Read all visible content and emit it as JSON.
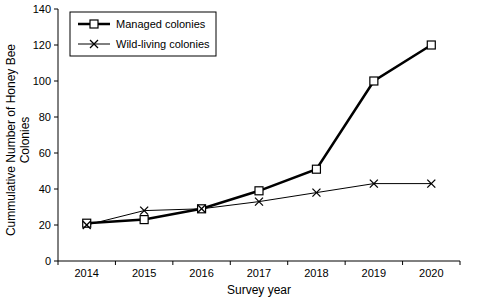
{
  "chart_data": {
    "type": "line",
    "x_label": "Survey year",
    "y_label": "Cummulative Number of Honey Bee Colonies",
    "categories": [
      "2014",
      "2015",
      "2016",
      "2017",
      "2018",
      "2019",
      "2020"
    ],
    "series": [
      {
        "name": "Managed colonies",
        "color": "#000000",
        "marker": "square",
        "line_style": "solid",
        "values": [
          21,
          23,
          29,
          39,
          51,
          100,
          120
        ]
      },
      {
        "name": "Wild-living colonies",
        "color": "#000000",
        "marker": "x",
        "line_style": "solid",
        "values": [
          20,
          28,
          29,
          33,
          38,
          43,
          43
        ]
      }
    ],
    "ylim": [
      0,
      140
    ],
    "yticks": [
      0,
      20,
      40,
      60,
      80,
      100,
      120,
      140
    ],
    "grid": false,
    "legend": "top-left"
  }
}
